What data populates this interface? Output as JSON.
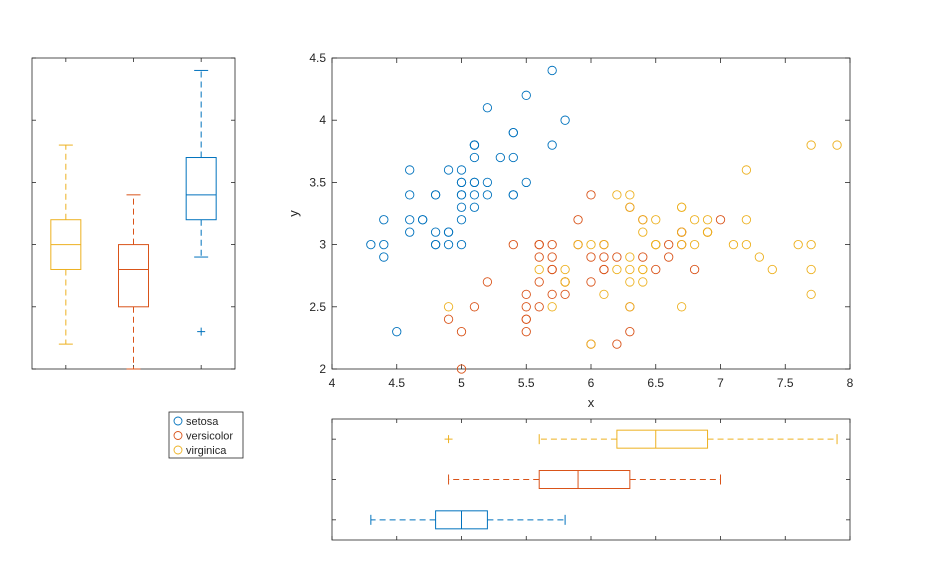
{
  "colors": {
    "setosa": "#0072BD",
    "versicolor": "#D95319",
    "virginica": "#EDB120",
    "axis": "#262626",
    "tick": "#262626"
  },
  "legend": {
    "entries": [
      "setosa",
      "versicolor",
      "virginica"
    ],
    "placement": "below-left"
  },
  "chart_data": [
    {
      "type": "scatter",
      "xlabel": "x",
      "ylabel": "y",
      "xlim": [
        4,
        8
      ],
      "ylim": [
        2,
        4.5
      ],
      "xticks": [
        4,
        4.5,
        5,
        5.5,
        6,
        6.5,
        7,
        7.5,
        8
      ],
      "yticks": [
        2,
        2.5,
        3,
        3.5,
        4,
        4.5
      ],
      "xtick_labels": [
        "4",
        "4.5",
        "5",
        "5.5",
        "6",
        "6.5",
        "7",
        "7.5",
        "8"
      ],
      "ytick_labels": [
        "2",
        "2.5",
        "3",
        "3.5",
        "4",
        "4.5"
      ],
      "grid": false,
      "marker": "open-circle",
      "series": [
        {
          "name": "setosa",
          "points": [
            [
              5.1,
              3.5
            ],
            [
              4.9,
              3.0
            ],
            [
              4.7,
              3.2
            ],
            [
              4.6,
              3.1
            ],
            [
              5.0,
              3.6
            ],
            [
              5.4,
              3.9
            ],
            [
              4.6,
              3.4
            ],
            [
              5.0,
              3.4
            ],
            [
              4.4,
              2.9
            ],
            [
              4.9,
              3.1
            ],
            [
              5.4,
              3.7
            ],
            [
              4.8,
              3.4
            ],
            [
              4.8,
              3.0
            ],
            [
              4.3,
              3.0
            ],
            [
              5.8,
              4.0
            ],
            [
              5.7,
              4.4
            ],
            [
              5.4,
              3.9
            ],
            [
              5.1,
              3.5
            ],
            [
              5.7,
              3.8
            ],
            [
              5.1,
              3.8
            ],
            [
              5.4,
              3.4
            ],
            [
              5.1,
              3.7
            ],
            [
              4.6,
              3.6
            ],
            [
              5.1,
              3.3
            ],
            [
              4.8,
              3.4
            ],
            [
              5.0,
              3.0
            ],
            [
              5.0,
              3.4
            ],
            [
              5.2,
              3.5
            ],
            [
              5.2,
              3.4
            ],
            [
              4.7,
              3.2
            ],
            [
              4.8,
              3.1
            ],
            [
              5.4,
              3.4
            ],
            [
              5.2,
              4.1
            ],
            [
              5.5,
              4.2
            ],
            [
              4.9,
              3.1
            ],
            [
              5.0,
              3.2
            ],
            [
              5.5,
              3.5
            ],
            [
              4.9,
              3.6
            ],
            [
              4.4,
              3.0
            ],
            [
              5.1,
              3.4
            ],
            [
              5.0,
              3.5
            ],
            [
              4.5,
              2.3
            ],
            [
              4.4,
              3.2
            ],
            [
              5.0,
              3.5
            ],
            [
              5.1,
              3.8
            ],
            [
              4.8,
              3.0
            ],
            [
              5.1,
              3.8
            ],
            [
              4.6,
              3.2
            ],
            [
              5.3,
              3.7
            ],
            [
              5.0,
              3.3
            ]
          ]
        },
        {
          "name": "versicolor",
          "points": [
            [
              7.0,
              3.2
            ],
            [
              6.4,
              3.2
            ],
            [
              6.9,
              3.1
            ],
            [
              5.5,
              2.3
            ],
            [
              6.5,
              2.8
            ],
            [
              5.7,
              2.8
            ],
            [
              6.3,
              3.3
            ],
            [
              4.9,
              2.4
            ],
            [
              6.6,
              2.9
            ],
            [
              5.2,
              2.7
            ],
            [
              5.0,
              2.0
            ],
            [
              5.9,
              3.0
            ],
            [
              6.0,
              2.2
            ],
            [
              6.1,
              2.9
            ],
            [
              5.6,
              2.9
            ],
            [
              6.7,
              3.1
            ],
            [
              5.6,
              3.0
            ],
            [
              5.8,
              2.7
            ],
            [
              6.2,
              2.2
            ],
            [
              5.6,
              2.5
            ],
            [
              5.9,
              3.2
            ],
            [
              6.1,
              2.8
            ],
            [
              6.3,
              2.5
            ],
            [
              6.1,
              2.8
            ],
            [
              6.4,
              2.9
            ],
            [
              6.6,
              3.0
            ],
            [
              6.8,
              2.8
            ],
            [
              6.7,
              3.0
            ],
            [
              6.0,
              2.9
            ],
            [
              5.7,
              2.6
            ],
            [
              5.5,
              2.4
            ],
            [
              5.5,
              2.4
            ],
            [
              5.8,
              2.7
            ],
            [
              6.0,
              2.7
            ],
            [
              5.4,
              3.0
            ],
            [
              6.0,
              3.4
            ],
            [
              6.7,
              3.1
            ],
            [
              6.3,
              2.3
            ],
            [
              5.6,
              3.0
            ],
            [
              5.5,
              2.5
            ],
            [
              5.5,
              2.6
            ],
            [
              6.1,
              3.0
            ],
            [
              5.8,
              2.6
            ],
            [
              5.0,
              2.3
            ],
            [
              5.6,
              2.7
            ],
            [
              5.7,
              3.0
            ],
            [
              5.7,
              2.9
            ],
            [
              6.2,
              2.9
            ],
            [
              5.1,
              2.5
            ],
            [
              5.7,
              2.8
            ]
          ]
        },
        {
          "name": "virginica",
          "points": [
            [
              6.3,
              3.3
            ],
            [
              5.8,
              2.7
            ],
            [
              7.1,
              3.0
            ],
            [
              6.3,
              2.9
            ],
            [
              6.5,
              3.0
            ],
            [
              7.6,
              3.0
            ],
            [
              4.9,
              2.5
            ],
            [
              7.3,
              2.9
            ],
            [
              6.7,
              2.5
            ],
            [
              7.2,
              3.6
            ],
            [
              6.5,
              3.2
            ],
            [
              6.4,
              2.7
            ],
            [
              6.8,
              3.0
            ],
            [
              5.7,
              2.5
            ],
            [
              5.8,
              2.8
            ],
            [
              6.4,
              3.2
            ],
            [
              6.5,
              3.0
            ],
            [
              7.7,
              3.8
            ],
            [
              7.7,
              2.6
            ],
            [
              6.0,
              2.2
            ],
            [
              6.9,
              3.2
            ],
            [
              5.6,
              2.8
            ],
            [
              7.7,
              2.8
            ],
            [
              6.3,
              2.7
            ],
            [
              6.7,
              3.3
            ],
            [
              7.2,
              3.2
            ],
            [
              6.2,
              2.8
            ],
            [
              6.1,
              3.0
            ],
            [
              6.4,
              2.8
            ],
            [
              7.2,
              3.0
            ],
            [
              7.4,
              2.8
            ],
            [
              7.9,
              3.8
            ],
            [
              6.4,
              2.8
            ],
            [
              6.3,
              2.8
            ],
            [
              6.1,
              2.6
            ],
            [
              7.7,
              3.0
            ],
            [
              6.3,
              3.4
            ],
            [
              6.4,
              3.1
            ],
            [
              6.0,
              3.0
            ],
            [
              6.9,
              3.1
            ],
            [
              6.7,
              3.1
            ],
            [
              6.9,
              3.1
            ],
            [
              5.8,
              2.7
            ],
            [
              6.8,
              3.2
            ],
            [
              6.7,
              3.3
            ],
            [
              6.7,
              3.0
            ],
            [
              6.3,
              2.5
            ],
            [
              6.5,
              3.0
            ],
            [
              6.2,
              3.4
            ],
            [
              5.9,
              3.0
            ]
          ]
        }
      ]
    },
    {
      "type": "box",
      "orientation": "vertical",
      "shares_axis_with": "y",
      "ylim": [
        2,
        4.5
      ],
      "series": [
        {
          "name": "virginica",
          "min": 2.2,
          "q1": 2.8,
          "median": 3.0,
          "q3": 3.2,
          "max": 3.8,
          "outliers": []
        },
        {
          "name": "versicolor",
          "min": 2.0,
          "q1": 2.5,
          "median": 2.8,
          "q3": 3.0,
          "max": 3.4,
          "outliers": []
        },
        {
          "name": "setosa",
          "min": 2.9,
          "q1": 3.2,
          "median": 3.4,
          "q3": 3.7,
          "max": 4.4,
          "outliers": [
            2.3
          ]
        }
      ]
    },
    {
      "type": "box",
      "orientation": "horizontal",
      "shares_axis_with": "x",
      "xlim": [
        4,
        8
      ],
      "series": [
        {
          "name": "virginica",
          "min": 5.6,
          "q1": 6.2,
          "median": 6.5,
          "q3": 6.9,
          "max": 7.9,
          "outliers": [
            4.9
          ]
        },
        {
          "name": "versicolor",
          "min": 4.9,
          "q1": 5.6,
          "median": 5.9,
          "q3": 6.3,
          "max": 7.0,
          "outliers": []
        },
        {
          "name": "setosa",
          "min": 4.3,
          "q1": 4.8,
          "median": 5.0,
          "q3": 5.2,
          "max": 5.8,
          "outliers": []
        }
      ]
    }
  ]
}
